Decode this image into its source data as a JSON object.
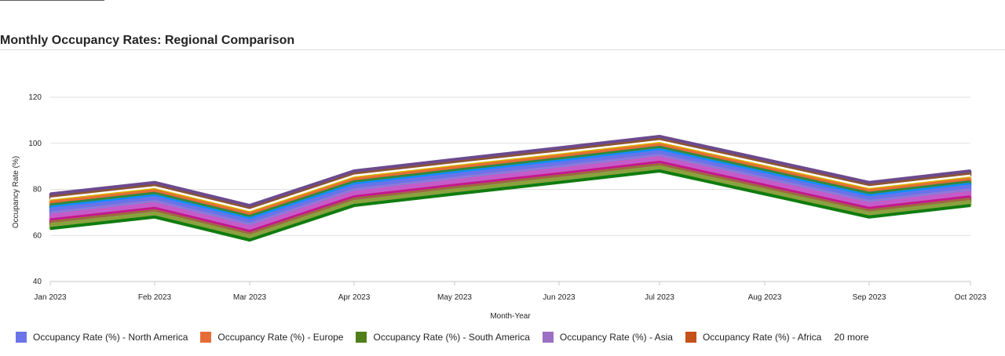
{
  "chart_data": {
    "type": "area",
    "stacked": true,
    "title": "Monthly Occupancy Rates: Regional Comparison",
    "xlabel": "Month-Year",
    "ylabel": "Occupancy Rate (%)",
    "ylim": [
      40,
      120
    ],
    "yticks": [
      "40",
      "60",
      "80",
      "100",
      "120"
    ],
    "categories": [
      "Jan 2023",
      "Feb 2023",
      "Mar 2023",
      "Apr 2023",
      "May 2023",
      "Jun 2023",
      "Jul 2023",
      "Aug 2023",
      "Sep 2023",
      "Oct 2023"
    ],
    "grid": true,
    "legend_position": "bottom-left",
    "base": [
      63,
      68,
      58,
      73,
      78,
      83,
      88,
      78,
      68,
      73
    ],
    "series_bands": [
      {
        "color": "#107c10",
        "values": [
          63,
          68,
          58,
          73,
          78,
          83,
          88,
          78,
          68,
          73
        ]
      },
      {
        "color": "#8aa33f",
        "values": [
          65,
          70,
          60,
          75,
          80,
          85,
          90,
          80,
          70,
          75
        ]
      },
      {
        "color": "#9c6b40",
        "values": [
          66,
          71,
          61,
          76,
          81,
          86,
          91,
          81,
          71,
          76
        ]
      },
      {
        "color": "#c4178a",
        "values": [
          67,
          72,
          62,
          77,
          82,
          87,
          92,
          82,
          72,
          77
        ]
      },
      {
        "color": "#c65bc8",
        "values": [
          69,
          74,
          64,
          79,
          84,
          89,
          94,
          84,
          74,
          79
        ]
      },
      {
        "color": "#8f7ad6",
        "values": [
          70,
          75,
          65,
          80,
          85,
          90,
          95,
          85,
          75,
          80
        ]
      },
      {
        "color": "#6b73e8",
        "values": [
          72,
          77,
          67,
          82,
          87,
          92,
          97,
          87,
          77,
          82
        ]
      },
      {
        "color": "#118dff",
        "values": [
          72.5,
          77.5,
          67.5,
          82.5,
          87.5,
          92.5,
          97.5,
          87.5,
          77.5,
          82.5
        ]
      },
      {
        "color": "#2b8a3e",
        "values": [
          73.5,
          78.5,
          68.5,
          83.5,
          88.5,
          93.5,
          98.5,
          88.5,
          78.5,
          83.5
        ]
      },
      {
        "color": "#e66c37",
        "values": [
          75,
          80,
          70,
          85,
          90,
          95,
          100,
          90,
          80,
          85
        ]
      },
      {
        "color": "#d9b300",
        "values": [
          75.5,
          80.5,
          70.5,
          85.5,
          90.5,
          95.5,
          100.5,
          90.5,
          80.5,
          85.5
        ]
      },
      {
        "color": "#ffffff",
        "values": [
          76,
          81,
          71,
          86,
          91,
          96,
          101,
          91,
          81,
          86
        ]
      },
      {
        "color": "#8e562e",
        "values": [
          77,
          82,
          72,
          87,
          92,
          97,
          102,
          92,
          82,
          87
        ]
      },
      {
        "color": "#6b4a8e",
        "values": [
          78,
          83,
          73,
          88,
          93,
          98,
          103,
          93,
          83,
          88
        ]
      }
    ],
    "legend": [
      {
        "name": "Occupancy Rate (%) - North America",
        "color": "#6b73e8"
      },
      {
        "name": "Occupancy Rate (%) - Europe",
        "color": "#e66c37"
      },
      {
        "name": "Occupancy Rate (%) - South America",
        "color": "#4e7f1a"
      },
      {
        "name": "Occupancy Rate (%) - Asia",
        "color": "#9c6fc4"
      },
      {
        "name": "Occupancy Rate (%) - Africa",
        "color": "#c4501a"
      }
    ],
    "legend_more": "20 more"
  }
}
